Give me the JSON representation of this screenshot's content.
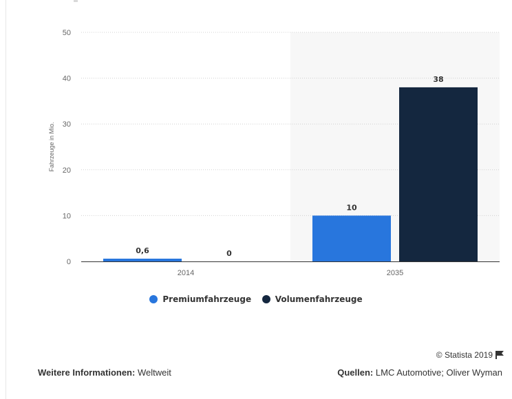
{
  "chart_data": {
    "type": "bar",
    "categories": [
      "2014",
      "2035"
    ],
    "series": [
      {
        "name": "Premiumfahrzeuge",
        "values": [
          0.6,
          10
        ],
        "labels": [
          "0,6",
          "10"
        ],
        "color": "#2876dd"
      },
      {
        "name": "Volumenfahrzeuge",
        "values": [
          0,
          38
        ],
        "labels": [
          "0",
          "38"
        ],
        "color": "#14273f"
      }
    ],
    "ylabel": "Fahrzeuge in Mio.",
    "ylim": [
      0,
      50
    ],
    "yticks": [
      0,
      10,
      20,
      30,
      40,
      50
    ],
    "grid": true,
    "highlight_category": "2035",
    "legend_position": "bottom"
  },
  "legend": {
    "premium": "Premiumfahrzeuge",
    "volumen": "Volumenfahrzeuge"
  },
  "footer": {
    "copyright": "© Statista 2019",
    "info_label": "Weitere Informationen:",
    "info_value": "Weltweit",
    "sources_label": "Quellen:",
    "sources_value": "LMC Automotive; Oliver Wyman"
  },
  "colors": {
    "premium": "#2876dd",
    "volumen": "#14273f",
    "highlight_bg": "#f7f7f7",
    "grid": "#d0d0d0"
  }
}
